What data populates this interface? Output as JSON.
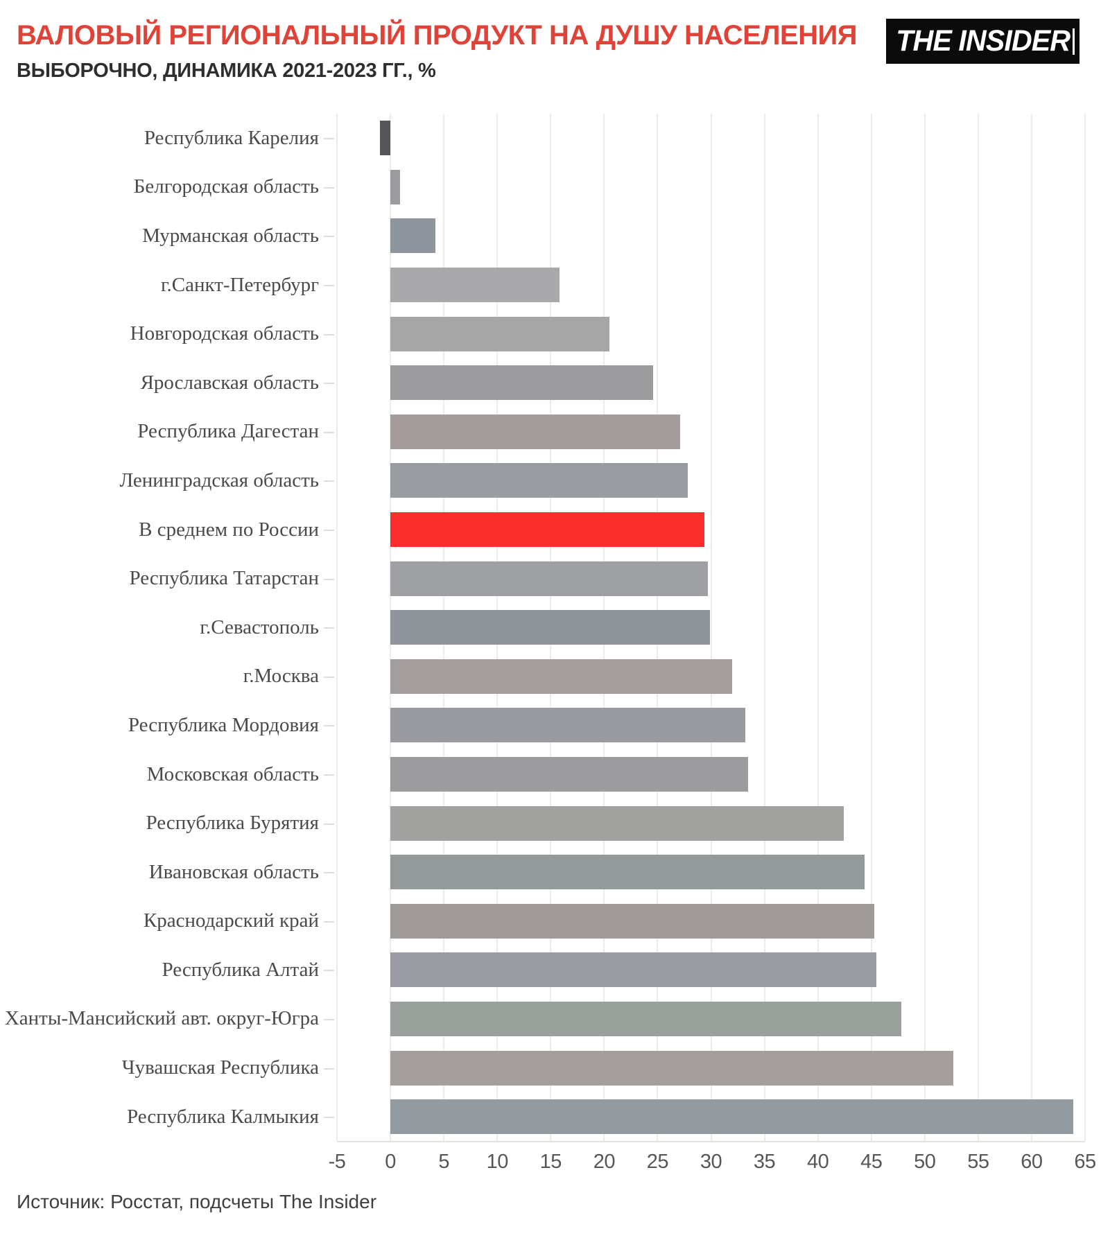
{
  "logo": {
    "text": "THE INSIDER"
  },
  "footer": {
    "source": "Источник: Росстат, подсчеты The Insider"
  },
  "colors": {
    "title_red": "#df4338",
    "highlight_bar_red": "#fb2d2d",
    "dark_bar": "#54565a",
    "gridline": "#ececec",
    "axis_line": "#e2e2e2",
    "category_label": "#4a4a4a",
    "tick_label": "#565656",
    "logo_background": "#0b0b0b",
    "logo_text": "#ffffff"
  },
  "chart_data": {
    "type": "bar",
    "orientation": "horizontal",
    "title": "ВАЛОВЫЙ РЕГИОНАЛЬНЫЙ ПРОДУКТ НА ДУШУ НАСЕЛЕНИЯ",
    "subtitle": "ВЫБОРОЧНО, ДИНАМИКА 2021-2023 ГГ., %",
    "xlabel": "",
    "ylabel": "",
    "xlim": [
      -5,
      65
    ],
    "x_ticks": [
      -5,
      0,
      5,
      10,
      15,
      20,
      25,
      30,
      35,
      40,
      45,
      50,
      55,
      60,
      65
    ],
    "grid": true,
    "highlight_category": "В среднем по России",
    "categories": [
      "Республика Карелия",
      "Белгородская область",
      "Мурманская область",
      "г.Санкт-Петербург",
      "Новгородская область",
      "Ярославская область",
      "Республика Дагестан",
      "Ленинградская область",
      "В среднем по России",
      "Республика Татарстан",
      "г.Севастополь",
      "г.Москва",
      "Республика Мордовия",
      "Московская область",
      "Республика Бурятия",
      "Ивановская область",
      "Краснодарский край",
      "Республика Алтай",
      "Ханты-Мансийский авт. округ-Югра",
      "Чувашская Республика",
      "Республика Калмыкия"
    ],
    "values": [
      -1,
      0.9,
      4.2,
      15.8,
      20.5,
      24.6,
      27.1,
      27.8,
      29.4,
      29.7,
      29.9,
      32,
      33.2,
      33.5,
      42.4,
      44.4,
      45.3,
      45.5,
      47.8,
      52.7,
      63.9
    ],
    "bar_colors": [
      "#54565a",
      "#9c9ca0",
      "#8e959d",
      "#a9a9ab",
      "#a6a6a6",
      "#9c9c9e",
      "#a39c9a",
      "#999da1",
      "#fb2d2d",
      "#9fa0a4",
      "#8f959b",
      "#a39e9d",
      "#999ba0",
      "#9c9c9e",
      "#a2a2a0",
      "#949a9a",
      "#a09b99",
      "#9b9ca3",
      "#9aa09c",
      "#a49e9c",
      "#939aa0"
    ]
  }
}
